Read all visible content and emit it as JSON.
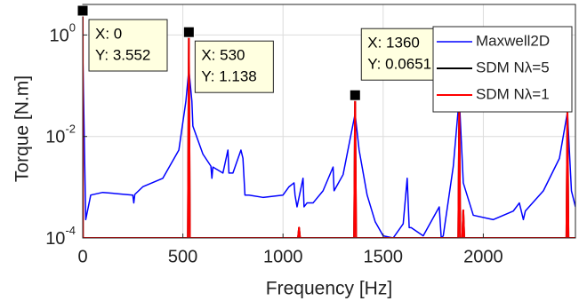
{
  "chart_data": {
    "type": "line",
    "log_y": true,
    "grid": true,
    "x_label": "Frequency [Hz]",
    "y_label": "Torque [N.m]",
    "xlim": [
      0,
      2460
    ],
    "xticks": [
      0,
      500,
      1000,
      1500,
      2000
    ],
    "ylim": [
      0.0001,
      4
    ],
    "yticks": [
      {
        "value": 0.0001,
        "label": "10",
        "exponent": "-4"
      },
      {
        "value": 0.01,
        "label": "10",
        "exponent": "-2"
      },
      {
        "value": 1,
        "label": "10",
        "exponent": "0"
      }
    ],
    "legend": "upper right",
    "series": [
      {
        "name": "Maxwell2D",
        "color": "#0000ff",
        "width": 1.5,
        "x": [
          0,
          15,
          40,
          100,
          250,
          255,
          260,
          300,
          400,
          480,
          515,
          530,
          545,
          550,
          600,
          640,
          645,
          650,
          700,
          725,
          730,
          750,
          790,
          800,
          810,
          830,
          900,
          1000,
          1030,
          1055,
          1060,
          1070,
          1100,
          1105,
          1120,
          1150,
          1200,
          1250,
          1255,
          1300,
          1340,
          1360,
          1380,
          1420,
          1460,
          1500,
          1550,
          1600,
          1620,
          1630,
          1640,
          1700,
          1780,
          1790,
          1800,
          1850,
          1880,
          1900,
          1950,
          2050,
          2150,
          2180,
          2200,
          2210,
          2300,
          2380,
          2420,
          2440,
          2460
        ],
        "values": [
          0.5,
          0.00023,
          0.0007,
          0.00079,
          0.0007,
          0.00049,
          0.00072,
          0.00102,
          0.0015,
          0.0054,
          0.049,
          0.21,
          0.05,
          0.016,
          0.0045,
          0.0026,
          0.0015,
          0.0025,
          0.0019,
          0.0054,
          0.0019,
          0.0019,
          0.0054,
          0.0037,
          0.0007,
          0.0007,
          0.00063,
          0.0007,
          0.00102,
          0.00122,
          0.0007,
          0.00041,
          0.0015,
          0.00041,
          0.00049,
          0.00049,
          0.00085,
          0.0025,
          0.00085,
          0.00177,
          0.0112,
          0.028,
          0.0054,
          0.0007,
          0.00021,
          0.00011,
          0.0001,
          0.00019,
          0.0015,
          0.00016,
          0.00016,
          0.00011,
          0.00041,
          0.0001,
          0.00011,
          0.00256,
          0.0586,
          0.00122,
          0.00028,
          0.00023,
          0.00034,
          0.00049,
          0.00023,
          0.00034,
          0.00085,
          0.0037,
          0.03,
          0.00085,
          0.00041
        ]
      },
      {
        "name": "SDM Nλ=5",
        "color": "#000000",
        "width": 2,
        "x": [
          0,
          1,
          5,
          525,
          530,
          535,
          1075,
          1080,
          1085,
          1355,
          1360,
          1365,
          1875,
          1880,
          1885,
          1895,
          1900,
          1905,
          2415,
          2420,
          2425,
          2460
        ],
        "values": [
          3.552,
          0.0001,
          0.0001,
          0.0001,
          1.138,
          0.0001,
          0.0001,
          0.00016,
          0.0001,
          0.0001,
          0.0651,
          0.0001,
          0.0001,
          0.04,
          0.0001,
          0.0001,
          0.00035,
          0.0001,
          0.0001,
          0.035,
          0.0001,
          0.0001
        ]
      },
      {
        "name": "SDM Nλ=1",
        "color": "#ff0000",
        "width": 2,
        "x": [
          0,
          1,
          5,
          525,
          530,
          535,
          1075,
          1080,
          1085,
          1355,
          1360,
          1365,
          1875,
          1880,
          1885,
          1895,
          1900,
          1905,
          2415,
          2420,
          2425,
          2460
        ],
        "values": [
          3.552,
          0.0001,
          0.0001,
          0.0001,
          1.138,
          0.0001,
          0.0001,
          0.00016,
          0.0001,
          0.0001,
          0.0651,
          0.0001,
          0.0001,
          0.04,
          0.0001,
          0.0001,
          0.00035,
          0.0001,
          0.0001,
          0.035,
          0.0001,
          0.0001
        ]
      }
    ],
    "annotations": [
      {
        "x": 0,
        "y": 3.552,
        "lines": [
          "X: 0",
          "Y: 3.552"
        ]
      },
      {
        "x": 530,
        "y": 1.138,
        "lines": [
          "X: 530",
          "Y: 1.138"
        ]
      },
      {
        "x": 1360,
        "y": 0.0651,
        "lines": [
          "X: 1360",
          "Y: 0.0651"
        ]
      }
    ]
  }
}
